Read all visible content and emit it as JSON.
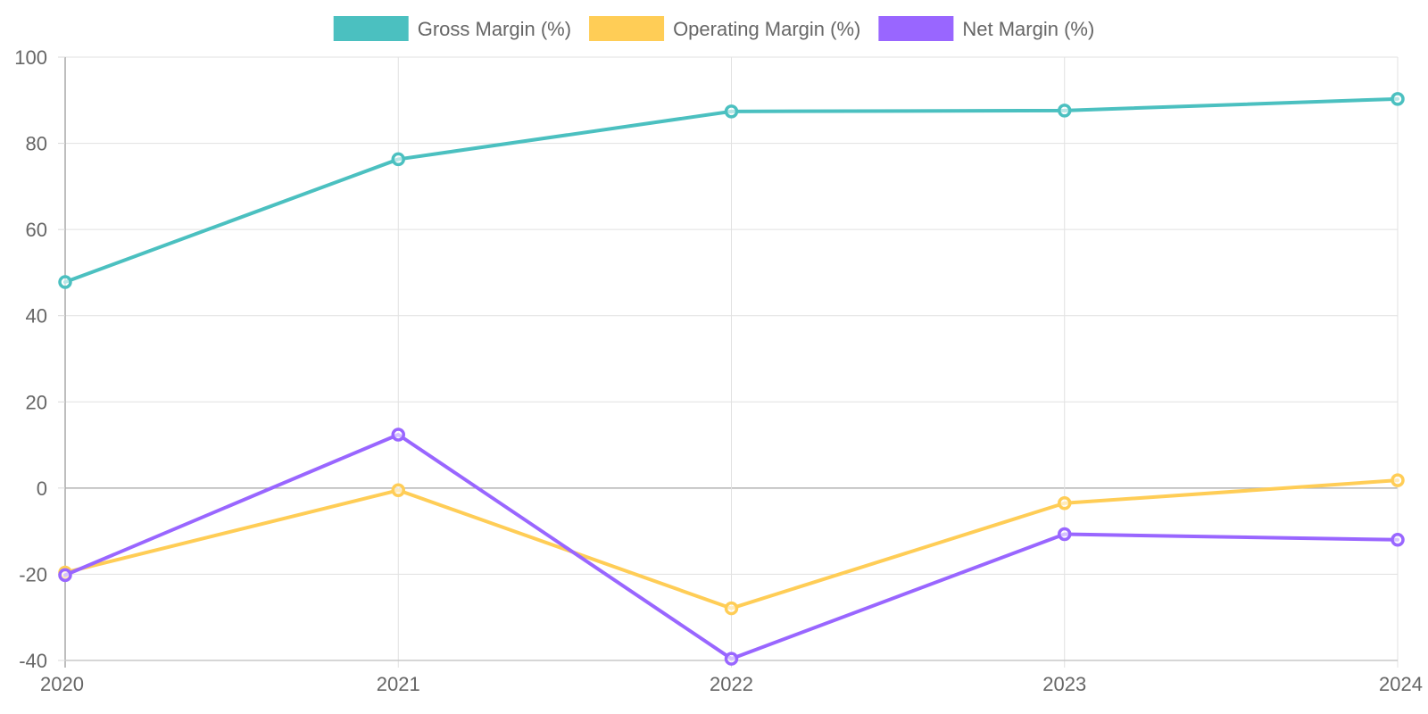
{
  "chart_data": {
    "type": "line",
    "title": "",
    "xlabel": "",
    "ylabel": "",
    "categories": [
      "2020",
      "2021",
      "2022",
      "2023",
      "2024"
    ],
    "ylim": [
      -40,
      100
    ],
    "yticks": [
      "100",
      "80",
      "60",
      "40",
      "20",
      "0",
      "-20",
      "-40"
    ],
    "ytick_values": [
      100,
      80,
      60,
      40,
      20,
      0,
      -20,
      -40
    ],
    "grid": true,
    "legend_position": "top-center",
    "series": [
      {
        "name": "Gross Margin (%)",
        "color": "#4bc0c0",
        "values": [
          47.8,
          76.3,
          87.4,
          87.6,
          90.3
        ]
      },
      {
        "name": "Operating Margin (%)",
        "color": "#ffcd56",
        "values": [
          -19.6,
          -0.5,
          -27.9,
          -3.5,
          1.8
        ]
      },
      {
        "name": "Net Margin (%)",
        "color": "#9966ff",
        "values": [
          -20.2,
          12.4,
          -39.6,
          -10.7,
          -12.0
        ]
      }
    ]
  }
}
